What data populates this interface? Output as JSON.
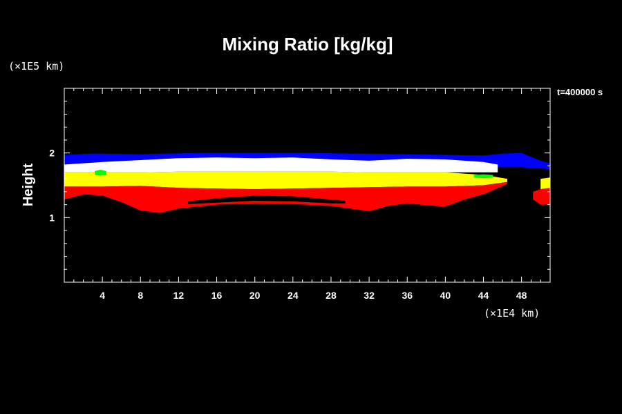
{
  "chart_data": {
    "type": "area",
    "title": "Mixing Ratio [kg/kg]",
    "xlabel": "",
    "ylabel": "Height",
    "x_unit_label": "(×1E4 km)",
    "y_unit_label": "(×1E5 km)",
    "time_label": "t=400000 s",
    "xlim": [
      0,
      51
    ],
    "ylim": [
      0,
      3
    ],
    "x_ticks": [
      4,
      8,
      12,
      16,
      20,
      24,
      28,
      32,
      36,
      40,
      44,
      48
    ],
    "x_tick_labels": [
      "4",
      "8",
      "12",
      "16",
      "20",
      "24",
      "28",
      "32",
      "36",
      "40",
      "44",
      "48"
    ],
    "y_ticks": [
      1,
      2
    ],
    "y_tick_labels": [
      "1",
      "2"
    ],
    "background_color": "#000000",
    "series": [
      {
        "color": "#0000ff",
        "top": [
          [
            0,
            1.97
          ],
          [
            3,
            1.99
          ],
          [
            8,
            1.98
          ],
          [
            14,
            2.0
          ],
          [
            20,
            2.0
          ],
          [
            26,
            2.0
          ],
          [
            30,
            1.99
          ],
          [
            36,
            1.98
          ],
          [
            40,
            1.97
          ],
          [
            44,
            1.96
          ],
          [
            46,
            1.99
          ],
          [
            48,
            2.0
          ],
          [
            50,
            1.88
          ],
          [
            51,
            1.84
          ]
        ],
        "bottom": [
          [
            0,
            1.8
          ],
          [
            3,
            1.8
          ],
          [
            8,
            1.8
          ],
          [
            14,
            1.8
          ],
          [
            20,
            1.8
          ],
          [
            26,
            1.8
          ],
          [
            30,
            1.78
          ],
          [
            36,
            1.77
          ],
          [
            40,
            1.76
          ],
          [
            44,
            1.78
          ],
          [
            46,
            1.78
          ],
          [
            48,
            1.78
          ],
          [
            50,
            1.76
          ],
          [
            51,
            1.75
          ]
        ]
      },
      {
        "color": "#ffffff",
        "top": [
          [
            0,
            1.82
          ],
          [
            4,
            1.86
          ],
          [
            8,
            1.89
          ],
          [
            12,
            1.92
          ],
          [
            16,
            1.93
          ],
          [
            20,
            1.92
          ],
          [
            24,
            1.93
          ],
          [
            28,
            1.9
          ],
          [
            32,
            1.88
          ],
          [
            36,
            1.91
          ],
          [
            40,
            1.9
          ],
          [
            44,
            1.86
          ],
          [
            45.5,
            1.82
          ]
        ],
        "bottom": [
          [
            0,
            1.7
          ],
          [
            4,
            1.7
          ],
          [
            8,
            1.7
          ],
          [
            12,
            1.71
          ],
          [
            16,
            1.71
          ],
          [
            20,
            1.71
          ],
          [
            24,
            1.71
          ],
          [
            28,
            1.71
          ],
          [
            32,
            1.7
          ],
          [
            36,
            1.7
          ],
          [
            40,
            1.7
          ],
          [
            44,
            1.7
          ],
          [
            45.5,
            1.7
          ]
        ]
      },
      {
        "color": "#ffff00",
        "top": [
          [
            0,
            1.7
          ],
          [
            4,
            1.7
          ],
          [
            8,
            1.7
          ],
          [
            12,
            1.71
          ],
          [
            16,
            1.71
          ],
          [
            20,
            1.71
          ],
          [
            24,
            1.71
          ],
          [
            28,
            1.71
          ],
          [
            32,
            1.7
          ],
          [
            36,
            1.7
          ],
          [
            40,
            1.7
          ],
          [
            44,
            1.66
          ],
          [
            46.5,
            1.6
          ]
        ],
        "bottom": [
          [
            0,
            1.48
          ],
          [
            4,
            1.48
          ],
          [
            8,
            1.49
          ],
          [
            12,
            1.46
          ],
          [
            16,
            1.45
          ],
          [
            20,
            1.44
          ],
          [
            24,
            1.45
          ],
          [
            28,
            1.46
          ],
          [
            32,
            1.47
          ],
          [
            36,
            1.48
          ],
          [
            40,
            1.48
          ],
          [
            44,
            1.5
          ],
          [
            46.5,
            1.55
          ]
        ]
      },
      {
        "color": "#ff0000",
        "top": [
          [
            0,
            1.48
          ],
          [
            4,
            1.48
          ],
          [
            8,
            1.49
          ],
          [
            12,
            1.46
          ],
          [
            16,
            1.45
          ],
          [
            20,
            1.44
          ],
          [
            24,
            1.45
          ],
          [
            28,
            1.46
          ],
          [
            32,
            1.47
          ],
          [
            36,
            1.48
          ],
          [
            40,
            1.48
          ],
          [
            44,
            1.5
          ],
          [
            46.5,
            1.55
          ]
        ],
        "bottom": [
          [
            0,
            1.28
          ],
          [
            2,
            1.36
          ],
          [
            4,
            1.34
          ],
          [
            6,
            1.24
          ],
          [
            8,
            1.11
          ],
          [
            10,
            1.07
          ],
          [
            12,
            1.14
          ],
          [
            16,
            1.2
          ],
          [
            20,
            1.22
          ],
          [
            24,
            1.21
          ],
          [
            28,
            1.18
          ],
          [
            32,
            1.1
          ],
          [
            34,
            1.18
          ],
          [
            36,
            1.22
          ],
          [
            38,
            1.19
          ],
          [
            40,
            1.17
          ],
          [
            42,
            1.28
          ],
          [
            44,
            1.36
          ],
          [
            46.5,
            1.52
          ]
        ]
      },
      {
        "color": "#000000",
        "top": [
          [
            13,
            1.25
          ],
          [
            16,
            1.3
          ],
          [
            20,
            1.34
          ],
          [
            24,
            1.33
          ],
          [
            28,
            1.28
          ],
          [
            29.5,
            1.26
          ]
        ],
        "bottom": [
          [
            13,
            1.21
          ],
          [
            16,
            1.23
          ],
          [
            20,
            1.26
          ],
          [
            24,
            1.25
          ],
          [
            28,
            1.22
          ],
          [
            29.5,
            1.22
          ]
        ]
      },
      {
        "color": "#ff0000",
        "top": [
          [
            49.2,
            1.4
          ],
          [
            50,
            1.44
          ],
          [
            51,
            1.46
          ]
        ],
        "bottom": [
          [
            49.2,
            1.28
          ],
          [
            50,
            1.2
          ],
          [
            51,
            1.2
          ]
        ]
      },
      {
        "color": "#ffff00",
        "top": [
          [
            50,
            1.6
          ],
          [
            51,
            1.62
          ]
        ],
        "bottom": [
          [
            50,
            1.44
          ],
          [
            51,
            1.46
          ]
        ]
      },
      {
        "color": "#00ff00",
        "top": [
          [
            3.2,
            1.72
          ],
          [
            3.8,
            1.74
          ],
          [
            4.4,
            1.72
          ]
        ],
        "bottom": [
          [
            3.2,
            1.66
          ],
          [
            3.8,
            1.65
          ],
          [
            4.4,
            1.66
          ]
        ]
      },
      {
        "color": "#00ff00",
        "top": [
          [
            43,
            1.66
          ],
          [
            44,
            1.67
          ],
          [
            45,
            1.66
          ]
        ],
        "bottom": [
          [
            43,
            1.62
          ],
          [
            44,
            1.61
          ],
          [
            45,
            1.62
          ]
        ]
      }
    ]
  }
}
